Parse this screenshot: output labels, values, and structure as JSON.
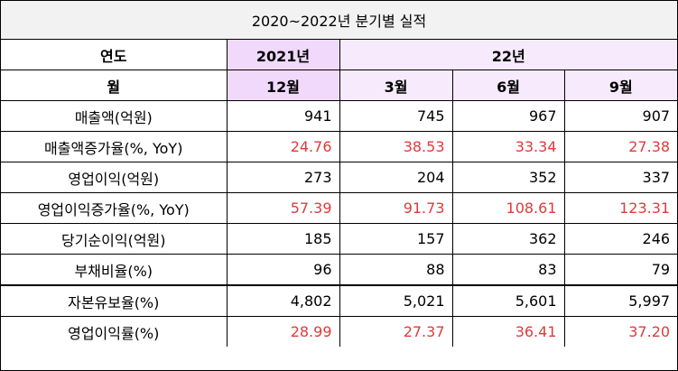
{
  "title": "2020~2022년 분기별 실적",
  "header": {
    "year_label": "연도",
    "year_2021": "2021년",
    "year_2022": "22년",
    "month_label": "월",
    "months": [
      "12월",
      "3월",
      "6월",
      "9월"
    ]
  },
  "rows": [
    {
      "label": "매출액(억원)",
      "values": [
        "941",
        "745",
        "967",
        "907"
      ],
      "highlight": false
    },
    {
      "label": "매출액증가율(%, YoY)",
      "values": [
        "24.76",
        "38.53",
        "33.34",
        "27.38"
      ],
      "highlight": true
    },
    {
      "label": "영업이익(억원)",
      "values": [
        "273",
        "204",
        "352",
        "337"
      ],
      "highlight": false
    },
    {
      "label": "영업이익증가율(%, YoY)",
      "values": [
        "57.39",
        "91.73",
        "108.61",
        "123.31"
      ],
      "highlight": true
    },
    {
      "label": "당기순이익(억원)",
      "values": [
        "185",
        "157",
        "362",
        "246"
      ],
      "highlight": false
    },
    {
      "label": "부채비율(%)",
      "values": [
        "96",
        "88",
        "83",
        "79"
      ],
      "highlight": false
    },
    {
      "label": "자본유보율(%)",
      "values": [
        "4,802",
        "5,021",
        "5,601",
        "5,997"
      ],
      "highlight": false
    },
    {
      "label": "영업이익률(%)",
      "values": [
        "28.99",
        "27.37",
        "36.41",
        "37.20"
      ],
      "highlight": true
    }
  ],
  "colors": {
    "highlight_text": "#e03a3a",
    "header_2021_bg": "#f0d9fb",
    "header_2022_bg": "#f7eafc",
    "title_bg": "#f2f2f2"
  }
}
